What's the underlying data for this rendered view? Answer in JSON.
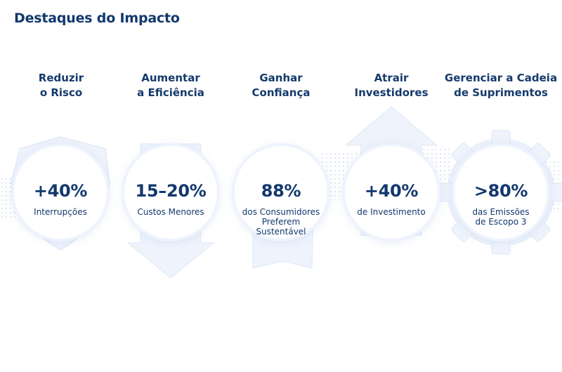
{
  "title": "Destaques do Impacto",
  "colors": {
    "primary": "#12386d",
    "shape_fill": "#eef3fc",
    "dots": "#b9c9e6"
  },
  "columns": [
    {
      "icon": "shield-icon",
      "title_lines": [
        "Reduzir",
        "o Risco"
      ],
      "stat": "+40%",
      "desc_lines": [
        "Interrupções"
      ]
    },
    {
      "icon": "arrow-down-icon",
      "title_lines": [
        "Aumentar",
        "a Eficiência"
      ],
      "stat": "15–20%",
      "desc_lines": [
        "Custos Menores"
      ]
    },
    {
      "icon": "ribbon-badge-icon",
      "title_lines": [
        "Ganhar",
        "Confiança"
      ],
      "stat": "88%",
      "desc_lines": [
        "dos Consumidores",
        "Preferem",
        "Sustentável"
      ]
    },
    {
      "icon": "arrow-up-icon",
      "title_lines": [
        "Atrair",
        "Investidores"
      ],
      "stat": "+40%",
      "desc_lines": [
        "de Investimento"
      ]
    },
    {
      "icon": "gear-icon",
      "title_lines": [
        "Gerenciar a Cadeia",
        "de Suprimentos"
      ],
      "stat": ">80%",
      "desc_lines": [
        "das Emissões",
        "de Escopo 3"
      ]
    }
  ]
}
